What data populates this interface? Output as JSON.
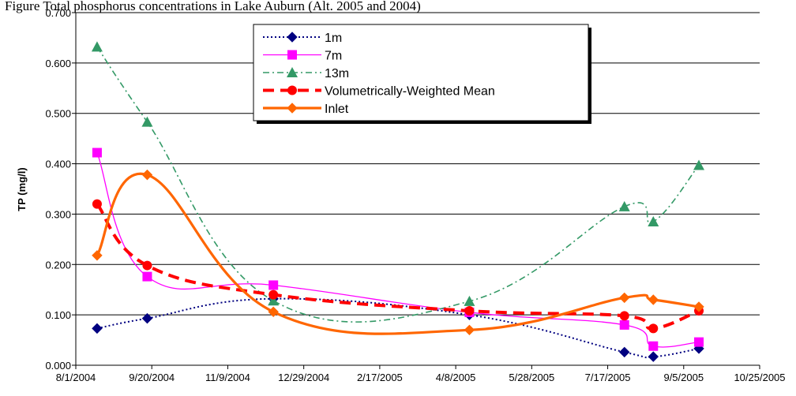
{
  "caption": "Figure  Total phosphorus concentrations in Lake Auburn (Alt. 2005 and 2004)",
  "chart_data": {
    "type": "line",
    "ylabel": "TP (mg/l)",
    "xlabel": "",
    "ylim": [
      0,
      0.7
    ],
    "yticks": [
      "0.000",
      "0.100",
      "0.200",
      "0.300",
      "0.400",
      "0.500",
      "0.600",
      "0.700"
    ],
    "xticks": [
      "8/1/2004",
      "9/20/2004",
      "11/9/2004",
      "12/29/2004",
      "2/17/2005",
      "4/8/2005",
      "5/28/2005",
      "7/17/2005",
      "9/5/2005",
      "10/25/2005"
    ],
    "xlim": [
      "8/1/2004",
      "10/25/2005"
    ],
    "grid": "horizontal",
    "legend_position": "top-center",
    "series": [
      {
        "name": "1m",
        "color": "#000080",
        "marker": "diamond",
        "style": "dotted",
        "points": [
          [
            "8/15/2004",
            0.073
          ],
          [
            "9/17/2004",
            0.093
          ],
          [
            "12/9/2004",
            0.132
          ],
          [
            "4/17/2005",
            0.1
          ],
          [
            "7/28/2005",
            0.026
          ],
          [
            "8/16/2005",
            0.017
          ],
          [
            "9/15/2005",
            0.033
          ]
        ]
      },
      {
        "name": "7m",
        "color": "#FF00FF",
        "marker": "square",
        "style": "solid-thin",
        "points": [
          [
            "8/15/2004",
            0.422
          ],
          [
            "9/17/2004",
            0.176
          ],
          [
            "12/9/2004",
            0.159
          ],
          [
            "4/17/2005",
            0.105
          ],
          [
            "7/28/2005",
            0.08
          ],
          [
            "8/16/2005",
            0.038
          ],
          [
            "9/15/2005",
            0.046
          ]
        ]
      },
      {
        "name": "13m",
        "color": "#339966",
        "marker": "triangle",
        "style": "dashdot",
        "points": [
          [
            "8/15/2004",
            0.632
          ],
          [
            "9/17/2004",
            0.483
          ],
          [
            "12/9/2004",
            0.128
          ],
          [
            "4/17/2005",
            0.127
          ],
          [
            "7/28/2005",
            0.315
          ],
          [
            "8/16/2005",
            0.285
          ],
          [
            "9/15/2005",
            0.397
          ]
        ]
      },
      {
        "name": "Volumetrically-Weighted Mean",
        "color": "#FF0000",
        "marker": "circle",
        "style": "dashed-thick",
        "points": [
          [
            "8/15/2004",
            0.32
          ],
          [
            "9/17/2004",
            0.198
          ],
          [
            "12/9/2004",
            0.14
          ],
          [
            "4/17/2005",
            0.108
          ],
          [
            "7/28/2005",
            0.098
          ],
          [
            "8/16/2005",
            0.073
          ],
          [
            "9/15/2005",
            0.108
          ]
        ]
      },
      {
        "name": "Inlet",
        "color": "#FF6600",
        "marker": "diamond",
        "style": "solid-thick",
        "points": [
          [
            "8/15/2004",
            0.218
          ],
          [
            "9/17/2004",
            0.378
          ],
          [
            "12/9/2004",
            0.106
          ],
          [
            "4/17/2005",
            0.07
          ],
          [
            "7/28/2005",
            0.134
          ],
          [
            "8/16/2005",
            0.13
          ],
          [
            "9/15/2005",
            0.116
          ]
        ]
      }
    ]
  }
}
